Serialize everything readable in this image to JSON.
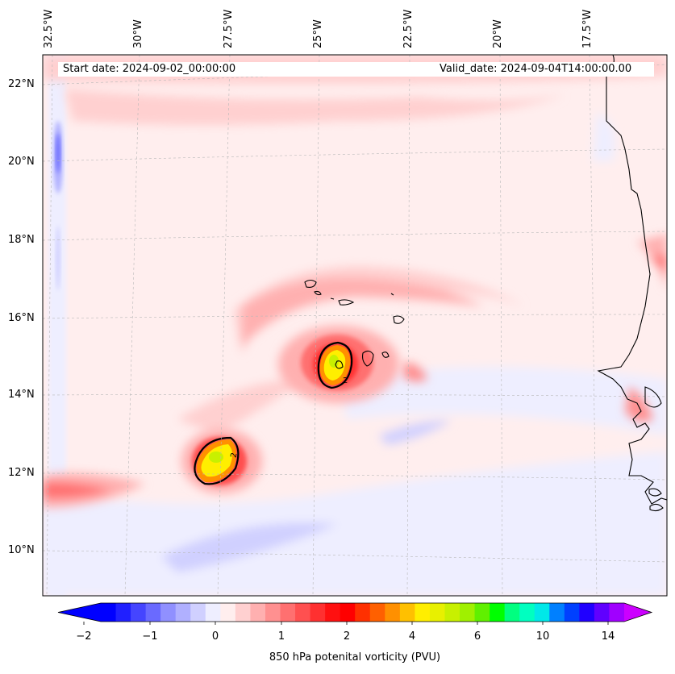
{
  "map": {
    "start_label": "Start date: 2024-09-02_00:00:00",
    "valid_label": "Valid_date: 2024-09-04T14:00:00.00",
    "lon_labels": [
      "32.5°W",
      "30°W",
      "27.5°W",
      "25°W",
      "22.5°W",
      "20°W",
      "17.5°W"
    ],
    "lat_labels": [
      "22°N",
      "20°N",
      "18°N",
      "16°N",
      "14°N",
      "12°N",
      "10°N"
    ],
    "contour_label": "2"
  },
  "colorbar": {
    "title": "850 hPa potenital vorticity (PVU)",
    "tick_labels": [
      "−2",
      "−1",
      "0",
      "1",
      "2",
      "4",
      "6",
      "10",
      "14"
    ],
    "colors": [
      "#0000ff",
      "#2020ff",
      "#4545ff",
      "#6a6aff",
      "#9090ff",
      "#b0b0ff",
      "#d0d0ff",
      "#eeeeff",
      "#ffeeee",
      "#ffd0d0",
      "#ffb0b0",
      "#ff9090",
      "#ff7070",
      "#ff5050",
      "#ff3030",
      "#ff1010",
      "#ff0000",
      "#ff3000",
      "#ff6000",
      "#ff9000",
      "#ffc000",
      "#ffee00",
      "#e8f000",
      "#c8f000",
      "#a0f000",
      "#60f000",
      "#00ff00",
      "#00ff80",
      "#00ffc0",
      "#00e8e8",
      "#0080ff",
      "#0040ff",
      "#2000ff",
      "#6000ff",
      "#a000ff"
    ],
    "extend_low_color": "#0000ff",
    "extend_high_color": "#cc00ff"
  }
}
